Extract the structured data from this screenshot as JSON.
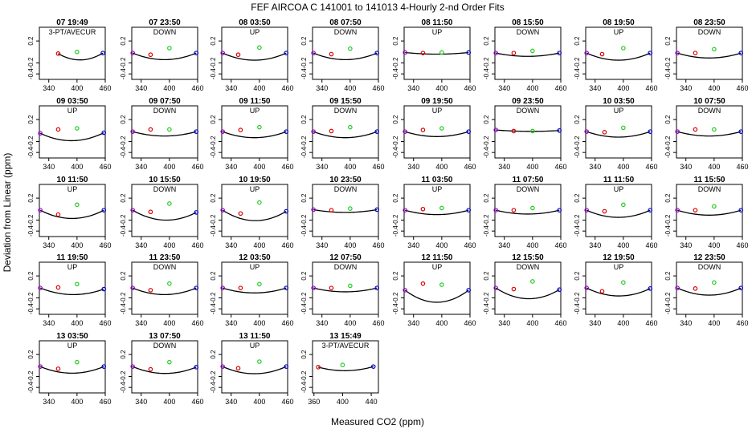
{
  "chart_data": {
    "type": "scatter",
    "title": "FEF   AIRCOA C   141001 to 141013   4-Hourly 2-nd Order Fits",
    "xlabel": "Measured CO2 (ppm)",
    "ylabel": "Deviation from Linear (ppm)",
    "xlim": [
      320,
      460
    ],
    "ylim": [
      -0.5,
      0.45
    ],
    "xticks": [
      "340",
      "400",
      "460"
    ],
    "xticks_last": [
      "360",
      "400",
      "440"
    ],
    "yticks": [
      "-0.4",
      "-0.2",
      "0.2"
    ],
    "series_colors": {
      "low": "#9900cc",
      "mid_low": "#dd0000",
      "mid": "#22cc22",
      "high": "#0000cc",
      "fit": "#000000"
    },
    "panels": [
      {
        "time": "07 19:49",
        "label": "3-PT/AVECUR",
        "points": [
          [
            360,
            -0.03
          ],
          [
            400,
            0.0
          ],
          [
            455,
            -0.02
          ]
        ],
        "curv": -0.12
      },
      {
        "time": "07 23:50",
        "label": "DOWN",
        "points": [
          [
            322,
            -0.02
          ],
          [
            360,
            -0.05
          ],
          [
            400,
            0.07
          ],
          [
            457,
            -0.02
          ]
        ],
        "curv": -0.12
      },
      {
        "time": "08 03:50",
        "label": "UP",
        "points": [
          [
            322,
            -0.02
          ],
          [
            355,
            -0.05
          ],
          [
            400,
            0.08
          ],
          [
            457,
            -0.02
          ]
        ],
        "curv": -0.13
      },
      {
        "time": "08 07:50",
        "label": "DOWN",
        "points": [
          [
            322,
            -0.02
          ],
          [
            360,
            -0.04
          ],
          [
            400,
            0.06
          ],
          [
            457,
            -0.02
          ]
        ],
        "curv": -0.12
      },
      {
        "time": "08 11:50",
        "label": "UP",
        "points": [
          [
            322,
            -0.01
          ],
          [
            360,
            -0.02
          ],
          [
            400,
            -0.01
          ],
          [
            457,
            -0.01
          ]
        ],
        "curv": -0.03
      },
      {
        "time": "08 15:50",
        "label": "DOWN",
        "points": [
          [
            322,
            -0.02
          ],
          [
            360,
            -0.02
          ],
          [
            400,
            0.02
          ],
          [
            457,
            -0.02
          ]
        ],
        "curv": -0.06
      },
      {
        "time": "08 19:50",
        "label": "UP",
        "points": [
          [
            322,
            -0.02
          ],
          [
            355,
            -0.04
          ],
          [
            400,
            0.07
          ],
          [
            457,
            -0.02
          ]
        ],
        "curv": -0.13
      },
      {
        "time": "08 23:50",
        "label": "DOWN",
        "points": [
          [
            322,
            -0.02
          ],
          [
            360,
            -0.02
          ],
          [
            400,
            0.05
          ],
          [
            457,
            -0.02
          ]
        ],
        "curv": -0.09
      },
      {
        "time": "09 03:50",
        "label": "UP",
        "points": [
          [
            322,
            -0.05
          ],
          [
            360,
            0.02
          ],
          [
            400,
            0.04
          ],
          [
            457,
            -0.04
          ]
        ],
        "curv": -0.14
      },
      {
        "time": "09 07:50",
        "label": "DOWN",
        "points": [
          [
            322,
            -0.02
          ],
          [
            360,
            0.02
          ],
          [
            400,
            0.02
          ],
          [
            457,
            -0.02
          ]
        ],
        "curv": -0.08
      },
      {
        "time": "09 11:50",
        "label": "UP",
        "points": [
          [
            322,
            -0.02
          ],
          [
            360,
            0.01
          ],
          [
            400,
            0.06
          ],
          [
            457,
            -0.02
          ]
        ],
        "curv": -0.11
      },
      {
        "time": "09 15:50",
        "label": "DOWN",
        "points": [
          [
            322,
            -0.02
          ],
          [
            360,
            -0.01
          ],
          [
            400,
            0.06
          ],
          [
            457,
            -0.02
          ]
        ],
        "curv": -0.11
      },
      {
        "time": "09 19:50",
        "label": "UP",
        "points": [
          [
            322,
            -0.02
          ],
          [
            360,
            0.01
          ],
          [
            400,
            0.04
          ],
          [
            457,
            -0.02
          ]
        ],
        "curv": -0.09
      },
      {
        "time": "09 23:50",
        "label": "DOWN",
        "points": [
          [
            322,
            0.01
          ],
          [
            360,
            -0.01
          ],
          [
            400,
            -0.01
          ],
          [
            457,
            0.0
          ]
        ],
        "curv": -0.02
      },
      {
        "time": "10 03:50",
        "label": "UP",
        "points": [
          [
            322,
            -0.02
          ],
          [
            360,
            -0.03
          ],
          [
            400,
            0.05
          ],
          [
            457,
            -0.02
          ]
        ],
        "curv": -0.1
      },
      {
        "time": "10 07:50",
        "label": "DOWN",
        "points": [
          [
            322,
            -0.02
          ],
          [
            360,
            0.02
          ],
          [
            400,
            0.02
          ],
          [
            457,
            -0.02
          ]
        ],
        "curv": -0.08
      },
      {
        "time": "10 11:50",
        "label": "UP",
        "points": [
          [
            322,
            -0.02
          ],
          [
            360,
            -0.1
          ],
          [
            400,
            0.08
          ],
          [
            457,
            -0.02
          ]
        ],
        "curv": -0.15
      },
      {
        "time": "10 15:50",
        "label": "DOWN",
        "points": [
          [
            322,
            -0.02
          ],
          [
            360,
            -0.05
          ],
          [
            400,
            0.1
          ],
          [
            457,
            -0.06
          ]
        ],
        "curv": -0.16
      },
      {
        "time": "10 19:50",
        "label": "UP",
        "points": [
          [
            322,
            -0.02
          ],
          [
            360,
            -0.08
          ],
          [
            400,
            0.12
          ],
          [
            457,
            -0.04
          ]
        ],
        "curv": -0.18
      },
      {
        "time": "10 23:50",
        "label": "DOWN",
        "points": [
          [
            322,
            -0.01
          ],
          [
            360,
            -0.02
          ],
          [
            400,
            0.01
          ],
          [
            457,
            -0.01
          ]
        ],
        "curv": -0.05
      },
      {
        "time": "11 03:50",
        "label": "UP",
        "points": [
          [
            322,
            -0.02
          ],
          [
            360,
            0.0
          ],
          [
            400,
            0.02
          ],
          [
            457,
            -0.02
          ]
        ],
        "curv": -0.08
      },
      {
        "time": "11 07:50",
        "label": "DOWN",
        "points": [
          [
            322,
            -0.02
          ],
          [
            360,
            -0.02
          ],
          [
            400,
            0.02
          ],
          [
            457,
            -0.02
          ]
        ],
        "curv": -0.07
      },
      {
        "time": "11 11:50",
        "label": "UP",
        "points": [
          [
            322,
            -0.02
          ],
          [
            360,
            -0.04
          ],
          [
            400,
            0.08
          ],
          [
            457,
            -0.02
          ]
        ],
        "curv": -0.13
      },
      {
        "time": "11 15:50",
        "label": "DOWN",
        "points": [
          [
            322,
            -0.02
          ],
          [
            360,
            -0.02
          ],
          [
            400,
            0.05
          ],
          [
            457,
            -0.02
          ]
        ],
        "curv": -0.09
      },
      {
        "time": "11 19:50",
        "label": "UP",
        "points": [
          [
            322,
            -0.02
          ],
          [
            360,
            -0.01
          ],
          [
            400,
            0.05
          ],
          [
            457,
            -0.04
          ]
        ],
        "curv": -0.11
      },
      {
        "time": "11 23:50",
        "label": "DOWN",
        "points": [
          [
            322,
            -0.02
          ],
          [
            360,
            -0.06
          ],
          [
            400,
            0.06
          ],
          [
            457,
            -0.02
          ]
        ],
        "curv": -0.12
      },
      {
        "time": "12 03:50",
        "label": "UP",
        "points": [
          [
            322,
            -0.02
          ],
          [
            360,
            -0.02
          ],
          [
            400,
            0.05
          ],
          [
            457,
            -0.02
          ]
        ],
        "curv": -0.09
      },
      {
        "time": "12 07:50",
        "label": "DOWN",
        "points": [
          [
            322,
            -0.02
          ],
          [
            360,
            -0.02
          ],
          [
            400,
            0.02
          ],
          [
            457,
            -0.02
          ]
        ],
        "curv": -0.07
      },
      {
        "time": "12 11:50",
        "label": "UP",
        "points": [
          [
            322,
            -0.06
          ],
          [
            360,
            0.06
          ],
          [
            400,
            0.04
          ],
          [
            457,
            -0.06
          ]
        ],
        "curv": -0.22
      },
      {
        "time": "12 15:50",
        "label": "DOWN",
        "points": [
          [
            322,
            -0.02
          ],
          [
            360,
            -0.04
          ],
          [
            400,
            0.1
          ],
          [
            457,
            -0.05
          ]
        ],
        "curv": -0.18
      },
      {
        "time": "12 19:50",
        "label": "UP",
        "points": [
          [
            322,
            -0.02
          ],
          [
            355,
            -0.08
          ],
          [
            400,
            0.08
          ],
          [
            457,
            -0.03
          ]
        ],
        "curv": -0.14
      },
      {
        "time": "12 23:50",
        "label": "DOWN",
        "points": [
          [
            322,
            -0.02
          ],
          [
            360,
            -0.03
          ],
          [
            400,
            0.08
          ],
          [
            457,
            -0.02
          ]
        ],
        "curv": -0.13
      },
      {
        "time": "13 03:50",
        "label": "UP",
        "points": [
          [
            322,
            -0.02
          ],
          [
            360,
            -0.06
          ],
          [
            400,
            0.06
          ],
          [
            457,
            -0.02
          ]
        ],
        "curv": -0.12
      },
      {
        "time": "13 07:50",
        "label": "DOWN",
        "points": [
          [
            322,
            -0.02
          ],
          [
            360,
            -0.07
          ],
          [
            400,
            0.06
          ],
          [
            457,
            -0.03
          ]
        ],
        "curv": -0.12
      },
      {
        "time": "13 11:50",
        "label": "UP",
        "points": [
          [
            322,
            -0.02
          ],
          [
            355,
            -0.05
          ],
          [
            400,
            0.07
          ],
          [
            457,
            -0.02
          ]
        ],
        "curv": -0.13
      },
      {
        "time": "13 15:49",
        "label": "3-PT/AVECUR",
        "points": [
          [
            366,
            -0.03
          ],
          [
            400,
            0.01
          ],
          [
            443,
            -0.02
          ]
        ],
        "curv": -0.07
      }
    ]
  }
}
